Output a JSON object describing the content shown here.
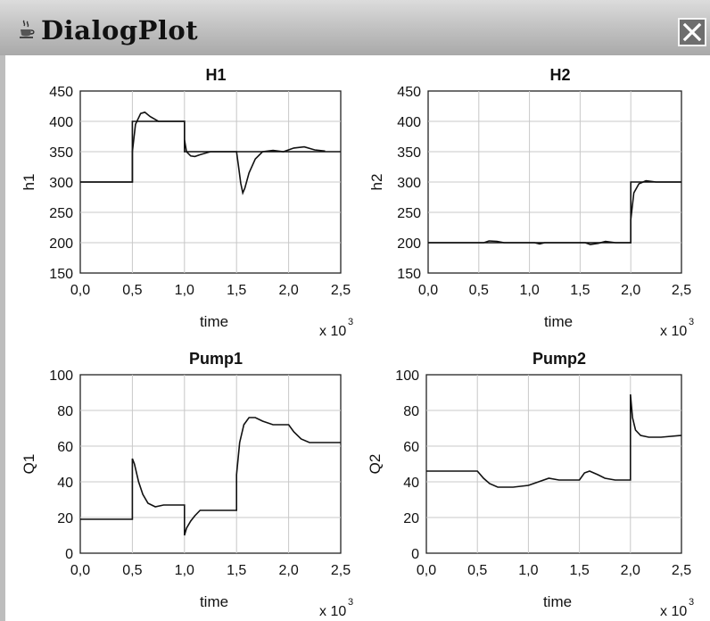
{
  "window": {
    "title": "DialogPlot",
    "icon": "java-cup-icon",
    "close_icon": "close-x-icon"
  },
  "chart_data": [
    {
      "type": "line",
      "title": "H1",
      "xlabel": "time",
      "ylabel": "h1",
      "x_multiplier": "x 10",
      "x_multiplier_exp": "3",
      "xlim": [
        0,
        2.5
      ],
      "ylim": [
        150,
        450
      ],
      "xticks": [
        "0,0",
        "0,5",
        "1,0",
        "1,5",
        "2,0",
        "2,5"
      ],
      "yticks": [
        "450",
        "400",
        "350",
        "300",
        "250",
        "200",
        "150"
      ],
      "grid": true,
      "series": [
        {
          "x": [
            0,
            0.5,
            0.5,
            0.53,
            0.58,
            0.62,
            0.67,
            0.75,
            1.0,
            1.0,
            1.02,
            1.06,
            1.1,
            1.15,
            1.25,
            1.5,
            1.52,
            1.54,
            1.56,
            1.58,
            1.62,
            1.68,
            1.75,
            1.85,
            1.95,
            2.05,
            2.15,
            2.25,
            2.35
          ],
          "values": [
            300,
            300,
            350,
            395,
            413,
            415,
            408,
            400,
            400,
            370,
            350,
            343,
            342,
            345,
            350,
            350,
            325,
            298,
            282,
            290,
            315,
            338,
            350,
            352,
            350,
            356,
            358,
            353,
            351
          ]
        },
        {
          "x": [
            0,
            0.5,
            0.5,
            1.0,
            1.0,
            2.5
          ],
          "values": [
            300,
            300,
            400,
            400,
            350,
            350
          ]
        }
      ]
    },
    {
      "type": "line",
      "title": "H2",
      "xlabel": "time",
      "ylabel": "h2",
      "x_multiplier": "x 10",
      "x_multiplier_exp": "3",
      "xlim": [
        0,
        2.5
      ],
      "ylim": [
        150,
        450
      ],
      "xticks": [
        "0,0",
        "0,5",
        "1,0",
        "1,5",
        "2,0",
        "2,5"
      ],
      "yticks": [
        "450",
        "400",
        "350",
        "300",
        "250",
        "200",
        "150"
      ],
      "grid": true,
      "series": [
        {
          "x": [
            0,
            0.55,
            0.6,
            0.68,
            0.75,
            1.05,
            1.1,
            1.15,
            1.55,
            1.6,
            1.68,
            1.75,
            1.85,
            2.0,
            2.0,
            2.03,
            2.08,
            2.15,
            2.25,
            2.5
          ],
          "values": [
            200,
            200,
            203,
            202,
            200,
            200,
            198,
            200,
            200,
            197,
            199,
            202,
            200,
            200,
            238,
            282,
            297,
            302,
            300,
            300
          ]
        },
        {
          "x": [
            0,
            2.0,
            2.0,
            2.5
          ],
          "values": [
            200,
            200,
            300,
            300
          ]
        }
      ]
    },
    {
      "type": "line",
      "title": "Pump1",
      "xlabel": "time",
      "ylabel": "Q1",
      "x_multiplier": "x 10",
      "x_multiplier_exp": "3",
      "xlim": [
        0,
        2.5
      ],
      "ylim": [
        0,
        100
      ],
      "xticks": [
        "0,0",
        "0,5",
        "1,0",
        "1,5",
        "2,0",
        "2,5"
      ],
      "yticks": [
        "100",
        "80",
        "60",
        "40",
        "20",
        "0"
      ],
      "grid": true,
      "series": [
        {
          "x": [
            0,
            0.5,
            0.5,
            0.52,
            0.56,
            0.6,
            0.65,
            0.72,
            0.8,
            1.0,
            1.0,
            1.02,
            1.06,
            1.1,
            1.15,
            1.25,
            1.5,
            1.5,
            1.53,
            1.57,
            1.62,
            1.68,
            1.75,
            1.85,
            2.0,
            2.05,
            2.12,
            2.2,
            2.5
          ],
          "values": [
            19,
            19,
            53,
            50,
            40,
            33,
            28,
            26,
            27,
            27,
            10,
            14,
            18,
            21,
            24,
            24,
            24,
            44,
            62,
            72,
            76,
            76,
            74,
            72,
            72,
            68,
            64,
            62,
            62
          ]
        }
      ]
    },
    {
      "type": "line",
      "title": "Pump2",
      "xlabel": "time",
      "ylabel": "Q2",
      "x_multiplier": "x 10",
      "x_multiplier_exp": "3",
      "xlim": [
        0,
        2.5
      ],
      "ylim": [
        0,
        100
      ],
      "xticks": [
        "0,0",
        "0,5",
        "1,0",
        "1,5",
        "2,0",
        "2,5"
      ],
      "yticks": [
        "100",
        "80",
        "60",
        "40",
        "20",
        "0"
      ],
      "grid": true,
      "series": [
        {
          "x": [
            0,
            0.5,
            0.56,
            0.62,
            0.7,
            0.85,
            1.0,
            1.1,
            1.2,
            1.3,
            1.5,
            1.55,
            1.6,
            1.68,
            1.75,
            1.85,
            2.0,
            2.0,
            2.02,
            2.05,
            2.1,
            2.18,
            2.3,
            2.5
          ],
          "values": [
            46,
            46,
            42,
            39,
            37,
            37,
            38,
            40,
            42,
            41,
            41,
            45,
            46,
            44,
            42,
            41,
            41,
            89,
            76,
            69,
            66,
            65,
            65,
            66
          ]
        }
      ]
    }
  ]
}
